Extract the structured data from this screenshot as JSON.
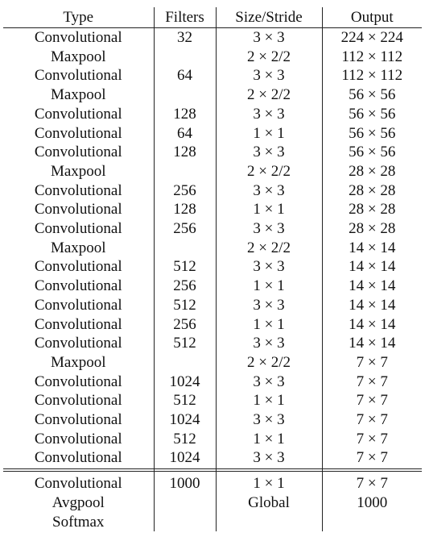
{
  "headers": [
    "Type",
    "Filters",
    "Size/Stride",
    "Output"
  ],
  "rows": [
    [
      "Convolutional",
      "32",
      "3 × 3",
      "224 × 224"
    ],
    [
      "Maxpool",
      "",
      "2 × 2/2",
      "112 × 112"
    ],
    [
      "Convolutional",
      "64",
      "3 × 3",
      "112 × 112"
    ],
    [
      "Maxpool",
      "",
      "2 × 2/2",
      "56 × 56"
    ],
    [
      "Convolutional",
      "128",
      "3 × 3",
      "56 × 56"
    ],
    [
      "Convolutional",
      "64",
      "1 × 1",
      "56 × 56"
    ],
    [
      "Convolutional",
      "128",
      "3 × 3",
      "56 × 56"
    ],
    [
      "Maxpool",
      "",
      "2 × 2/2",
      "28 × 28"
    ],
    [
      "Convolutional",
      "256",
      "3 × 3",
      "28 × 28"
    ],
    [
      "Convolutional",
      "128",
      "1 × 1",
      "28 × 28"
    ],
    [
      "Convolutional",
      "256",
      "3 × 3",
      "28 × 28"
    ],
    [
      "Maxpool",
      "",
      "2 × 2/2",
      "14 × 14"
    ],
    [
      "Convolutional",
      "512",
      "3 × 3",
      "14 × 14"
    ],
    [
      "Convolutional",
      "256",
      "1 × 1",
      "14 × 14"
    ],
    [
      "Convolutional",
      "512",
      "3 × 3",
      "14 × 14"
    ],
    [
      "Convolutional",
      "256",
      "1 × 1",
      "14 × 14"
    ],
    [
      "Convolutional",
      "512",
      "3 × 3",
      "14 × 14"
    ],
    [
      "Maxpool",
      "",
      "2 × 2/2",
      "7 × 7"
    ],
    [
      "Convolutional",
      "1024",
      "3 × 3",
      "7 × 7"
    ],
    [
      "Convolutional",
      "512",
      "1 × 1",
      "7 × 7"
    ],
    [
      "Convolutional",
      "1024",
      "3 × 3",
      "7 × 7"
    ],
    [
      "Convolutional",
      "512",
      "1 × 1",
      "7 × 7"
    ],
    [
      "Convolutional",
      "1024",
      "3 × 3",
      "7 × 7"
    ]
  ],
  "footer_rows": [
    [
      "Convolutional",
      "1000",
      "1 × 1",
      "7 × 7"
    ],
    [
      "Avgpool",
      "",
      "Global",
      "1000"
    ],
    [
      "Softmax",
      "",
      "",
      ""
    ]
  ]
}
